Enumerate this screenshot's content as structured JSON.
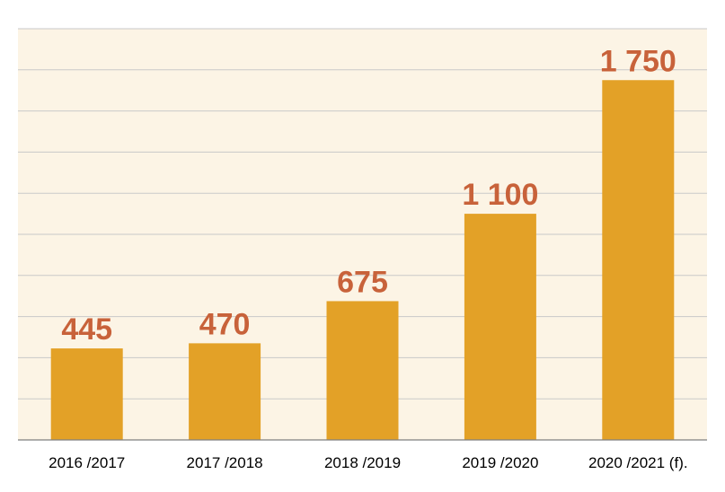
{
  "chart_data": {
    "type": "bar",
    "categories": [
      "2016 /2017",
      "2017 /2018",
      "2018 /2019",
      "2019 /2020",
      "2020 /2021 (f)."
    ],
    "values": [
      445,
      470,
      675,
      1100,
      1750
    ],
    "value_labels": [
      "445",
      "470",
      "675",
      "1 100",
      "1 750"
    ],
    "title": "",
    "xlabel": "",
    "ylabel": "",
    "ylim": [
      0,
      2000
    ],
    "grid": true,
    "gridline_step": 200,
    "legend": "none"
  },
  "colors": {
    "background": "#fcf4e5",
    "bar": "#e3a127",
    "value_label": "#c8623a",
    "grid": "#c9c9c9",
    "axis": "#7f7f7f"
  }
}
